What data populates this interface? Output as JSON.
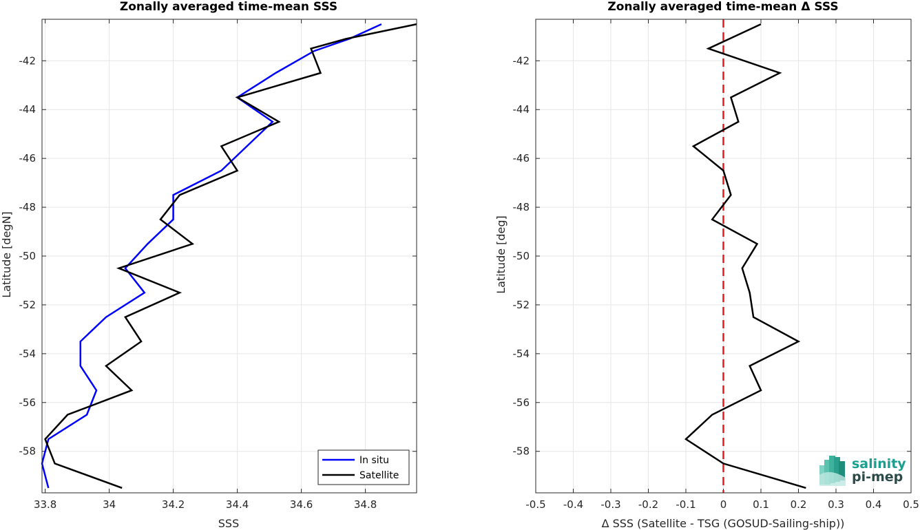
{
  "colors": {
    "in_situ": "#0000ff",
    "satellite": "#000000",
    "zero_line": "#e41a1c",
    "grid": "#e6e6e6",
    "logo_teal": "#1a9f8e",
    "logo_dark": "#2b4a4a"
  },
  "logo": {
    "line1": "salinity",
    "line2": "pi-mep",
    "icon": "wave-bars-icon"
  },
  "chart_data": [
    {
      "type": "line",
      "title": "Zonally averaged time-mean SSS",
      "xlabel": "SSS",
      "ylabel": "Latitude [degN]",
      "xlim": [
        33.79,
        34.96
      ],
      "ylim": [
        -59.7,
        -40.3
      ],
      "xticks": [
        33.8,
        34,
        34.2,
        34.4,
        34.6,
        34.8
      ],
      "xtick_labels": [
        "33.8",
        "34",
        "34.2",
        "34.4",
        "34.6",
        "34.8"
      ],
      "yticks": [
        -42,
        -44,
        -46,
        -48,
        -50,
        -52,
        -54,
        -56,
        -58
      ],
      "ytick_labels": [
        "-42",
        "-44",
        "-46",
        "-48",
        "-50",
        "-52",
        "-54",
        "-56",
        "-58"
      ],
      "grid": true,
      "legend_position": "bottom-right",
      "series": [
        {
          "name": "In situ",
          "color_key": "in_situ",
          "x": [
            34.85,
            34.75,
            34.64,
            34.52,
            34.4,
            34.51,
            34.43,
            34.35,
            34.2,
            34.2,
            34.12,
            34.05,
            34.11,
            33.99,
            33.91,
            33.91,
            33.96,
            33.93,
            33.81,
            33.79,
            33.81
          ],
          "y": [
            -40.5,
            -41.1,
            -41.6,
            -42.5,
            -43.5,
            -44.5,
            -45.5,
            -46.5,
            -47.5,
            -48.5,
            -49.5,
            -50.5,
            -51.5,
            -52.5,
            -53.5,
            -54.5,
            -55.5,
            -56.5,
            -57.5,
            -58.5,
            -59.5
          ]
        },
        {
          "name": "Satellite",
          "color_key": "satellite",
          "x": [
            34.96,
            34.74,
            34.63,
            34.66,
            34.4,
            34.53,
            34.35,
            34.4,
            34.22,
            34.16,
            34.26,
            34.03,
            34.22,
            34.05,
            34.1,
            33.99,
            34.07,
            33.87,
            33.8,
            33.83,
            34.04
          ],
          "y": [
            -40.5,
            -41.1,
            -41.5,
            -42.5,
            -43.5,
            -44.5,
            -45.5,
            -46.5,
            -47.5,
            -48.5,
            -49.5,
            -50.5,
            -51.5,
            -52.5,
            -53.5,
            -54.5,
            -55.5,
            -56.5,
            -57.5,
            -58.5,
            -59.5
          ]
        }
      ]
    },
    {
      "type": "line",
      "title": "Zonally averaged time-mean Δ SSS",
      "xlabel": "Δ SSS (Satellite - TSG (GOSUD-Sailing-ship))",
      "ylabel": "Latitude [deg]",
      "xlim": [
        -0.5,
        0.5
      ],
      "ylim": [
        -59.7,
        -40.3
      ],
      "xticks": [
        -0.5,
        -0.4,
        -0.3,
        -0.2,
        -0.1,
        0,
        0.1,
        0.2,
        0.3,
        0.4,
        0.5
      ],
      "xtick_labels": [
        "-0.5",
        "-0.4",
        "-0.3",
        "-0.2",
        "-0.1",
        "0",
        "0.1",
        "0.2",
        "0.3",
        "0.4",
        "0.5"
      ],
      "yticks": [
        -42,
        -44,
        -46,
        -48,
        -50,
        -52,
        -54,
        -56,
        -58
      ],
      "ytick_labels": [
        "-42",
        "-44",
        "-46",
        "-48",
        "-50",
        "-52",
        "-54",
        "-56",
        "-58"
      ],
      "grid": true,
      "series": [
        {
          "name": "",
          "color_key": "satellite",
          "x": [
            0.1,
            -0.04,
            0.15,
            0.02,
            0.04,
            -0.08,
            0.0,
            0.02,
            -0.03,
            0.09,
            0.05,
            0.07,
            0.08,
            0.2,
            0.07,
            0.1,
            -0.03,
            -0.1,
            0.0,
            0.22
          ],
          "y": [
            -40.5,
            -41.5,
            -42.5,
            -43.5,
            -44.5,
            -45.5,
            -46.5,
            -47.5,
            -48.5,
            -49.5,
            -50.5,
            -51.5,
            -52.5,
            -53.5,
            -54.5,
            -55.5,
            -56.5,
            -57.5,
            -58.5,
            -59.5
          ]
        }
      ],
      "reference_line": {
        "x": 0,
        "style": "dashed",
        "color_key": "zero_line"
      }
    }
  ]
}
